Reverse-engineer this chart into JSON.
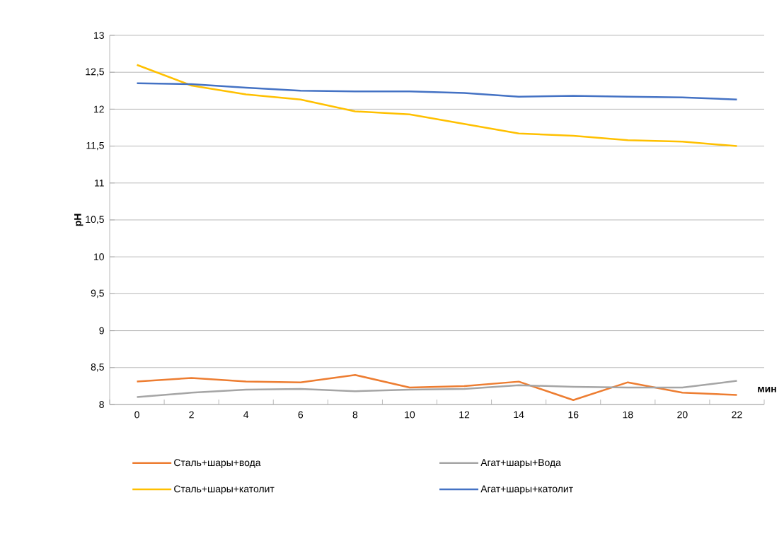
{
  "chart_data": {
    "type": "line",
    "xlabel": "мин",
    "ylabel": "pH",
    "categories": [
      "0",
      "2",
      "4",
      "6",
      "8",
      "10",
      "12",
      "14",
      "16",
      "18",
      "20",
      "22"
    ],
    "series": [
      {
        "name": "Сталь+шары+вода",
        "color": "#ed7d31",
        "values": [
          8.31,
          8.36,
          8.31,
          8.3,
          8.4,
          8.23,
          8.25,
          8.31,
          8.06,
          8.3,
          8.16,
          8.13
        ]
      },
      {
        "name": "Агат+шары+Вода",
        "color": "#a5a5a5",
        "values": [
          8.1,
          8.16,
          8.2,
          8.21,
          8.18,
          8.2,
          8.21,
          8.26,
          8.24,
          8.23,
          8.23,
          8.32
        ]
      },
      {
        "name": "Сталь+шары+католит",
        "color": "#ffc000",
        "values": [
          12.6,
          12.32,
          12.2,
          12.13,
          11.97,
          11.93,
          11.8,
          11.67,
          11.64,
          11.58,
          11.56,
          11.5
        ]
      },
      {
        "name": "Агат+шары+католит",
        "color": "#4472c4",
        "values": [
          12.35,
          12.34,
          12.29,
          12.25,
          12.24,
          12.24,
          12.22,
          12.17,
          12.18,
          12.17,
          12.16,
          12.13
        ]
      }
    ],
    "ylim": [
      8,
      13
    ],
    "yticks": [
      8,
      {
        "value": 8.5,
        "label": "8,5"
      },
      9,
      {
        "value": 9.5,
        "label": "9,5"
      },
      10,
      {
        "value": 10.5,
        "label": "10,5"
      },
      11,
      {
        "value": 11.5,
        "label": "11,5"
      },
      12,
      {
        "value": 12.5,
        "label": "12,5"
      },
      13
    ],
    "grid": "y",
    "legend": "bottom",
    "marker": "none",
    "line_style": "solid"
  }
}
